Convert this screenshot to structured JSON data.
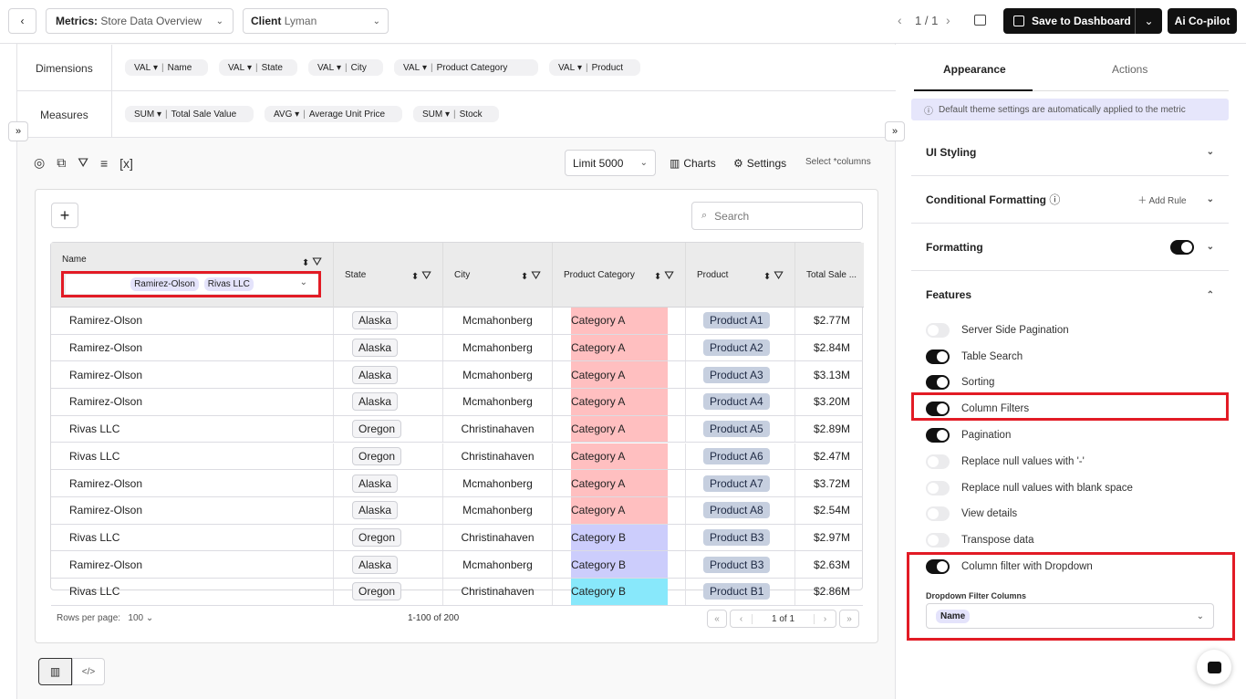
{
  "topbar": {
    "metrics_label": "Metrics:",
    "metrics_value": "Store Data Overview",
    "client_label": "Client",
    "client_value": "Lyman",
    "page_indicator": "1 / 1",
    "save_label": "Save to Dashboard",
    "copilot_label": "Ai Co-pilot"
  },
  "dimensions": {
    "label": "Dimensions",
    "items": [
      {
        "agg": "VAL",
        "field": "Name"
      },
      {
        "agg": "VAL",
        "field": "State"
      },
      {
        "agg": "VAL",
        "field": "City"
      },
      {
        "agg": "VAL",
        "field": "Product Category"
      },
      {
        "agg": "VAL",
        "field": "Product"
      }
    ]
  },
  "measures": {
    "label": "Measures",
    "items": [
      {
        "agg": "SUM",
        "field": "Total Sale Value"
      },
      {
        "agg": "AVG",
        "field": "Average Unit Price"
      },
      {
        "agg": "SUM",
        "field": "Stock"
      }
    ]
  },
  "toolbar": {
    "limit": "Limit 5000",
    "charts": "Charts",
    "settings": "Settings",
    "select_columns": "Select *columns",
    "bracket_x": "[x]"
  },
  "table": {
    "search_placeholder": "Search",
    "headers": [
      "Name",
      "State",
      "City",
      "Product Category",
      "Product",
      "Total Sale ..."
    ],
    "name_filter_chips": [
      "Ramirez-Olson",
      "Rivas LLC"
    ],
    "rows": [
      [
        "Ramirez-Olson",
        "Alaska",
        "Mcmahonberg",
        "Category A",
        "Product A1",
        "$2.77M"
      ],
      [
        "Ramirez-Olson",
        "Alaska",
        "Mcmahonberg",
        "Category A",
        "Product A2",
        "$2.84M"
      ],
      [
        "Ramirez-Olson",
        "Alaska",
        "Mcmahonberg",
        "Category A",
        "Product A3",
        "$3.13M"
      ],
      [
        "Ramirez-Olson",
        "Alaska",
        "Mcmahonberg",
        "Category A",
        "Product A4",
        "$3.20M"
      ],
      [
        "Rivas LLC",
        "Oregon",
        "Christinahaven",
        "Category A",
        "Product A5",
        "$2.89M"
      ],
      [
        "Rivas LLC",
        "Oregon",
        "Christinahaven",
        "Category A",
        "Product A6",
        "$2.47M"
      ],
      [
        "Ramirez-Olson",
        "Alaska",
        "Mcmahonberg",
        "Category A",
        "Product A7",
        "$3.72M"
      ],
      [
        "Ramirez-Olson",
        "Alaska",
        "Mcmahonberg",
        "Category A",
        "Product A8",
        "$2.54M"
      ],
      [
        "Rivas LLC",
        "Oregon",
        "Christinahaven",
        "Category B",
        "Product B3",
        "$2.97M"
      ],
      [
        "Ramirez-Olson",
        "Alaska",
        "Mcmahonberg",
        "Category B",
        "Product B3",
        "$2.63M"
      ],
      [
        "Rivas LLC",
        "Oregon",
        "Christinahaven",
        "Category B",
        "Product B1",
        "$2.86M"
      ]
    ],
    "category_colors": [
      "#ffbfc0",
      "#ffbfc0",
      "#ffbfc0",
      "#ffbfc0",
      "#ffbfc0",
      "#ffbfc0",
      "#ffbfc0",
      "#ffbfc0",
      "#cccdfc",
      "#cccdfc",
      "#88e8fb"
    ],
    "rows_per_page_label": "Rows per page:",
    "rows_per_page": "100",
    "range": "1-100 of 200",
    "page": "1 of 1"
  },
  "panel": {
    "tabs": [
      "Appearance",
      "Actions"
    ],
    "info": "Default theme settings are automatically applied to the metric",
    "sections": {
      "ui_styling": "UI Styling",
      "conditional": "Conditional Formatting",
      "add_rule": "Add Rule",
      "formatting": "Formatting",
      "features": "Features"
    },
    "formatting_enabled": true,
    "features": [
      {
        "label": "Server Side Pagination",
        "on": false
      },
      {
        "label": "Table Search",
        "on": true
      },
      {
        "label": "Sorting",
        "on": true
      },
      {
        "label": "Column Filters",
        "on": true
      },
      {
        "label": "Pagination",
        "on": true
      },
      {
        "label": "Replace null values with '-'",
        "on": false
      },
      {
        "label": "Replace null values with blank space",
        "on": false
      },
      {
        "label": "View details",
        "on": false
      },
      {
        "label": "Transpose data",
        "on": false
      },
      {
        "label": "Column filter with Dropdown",
        "on": true
      }
    ],
    "dropdown_label": "Dropdown Filter Columns",
    "dropdown_value": "Name"
  }
}
